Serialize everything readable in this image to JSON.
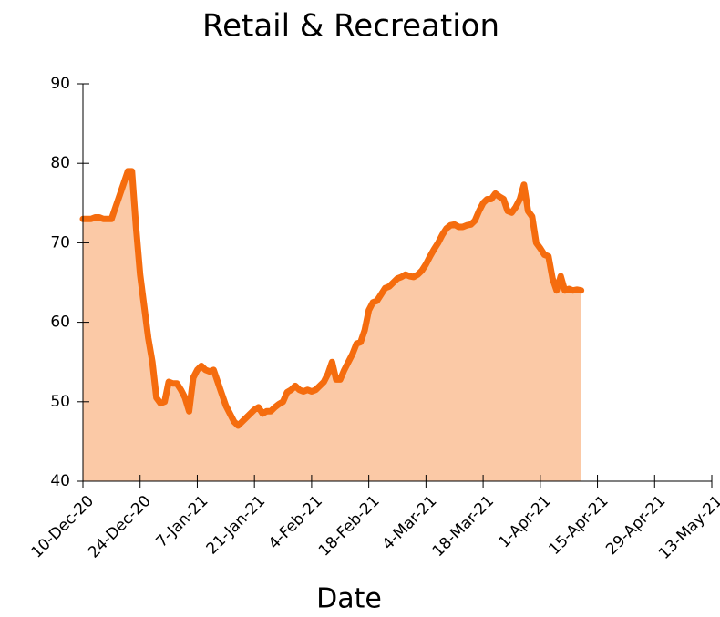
{
  "chart_data": {
    "type": "area",
    "title": "Retail & Recreation",
    "x_label": "Date",
    "x": [
      "2020-12-10",
      "2020-12-11",
      "2020-12-12",
      "2020-12-13",
      "2020-12-14",
      "2020-12-15",
      "2020-12-16",
      "2020-12-17",
      "2020-12-18",
      "2020-12-19",
      "2020-12-20",
      "2020-12-21",
      "2020-12-22",
      "2020-12-23",
      "2020-12-24",
      "2020-12-25",
      "2020-12-26",
      "2020-12-27",
      "2020-12-28",
      "2020-12-29",
      "2020-12-30",
      "2020-12-31",
      "2021-01-01",
      "2021-01-02",
      "2021-01-03",
      "2021-01-04",
      "2021-01-05",
      "2021-01-06",
      "2021-01-07",
      "2021-01-08",
      "2021-01-09",
      "2021-01-10",
      "2021-01-11",
      "2021-01-12",
      "2021-01-13",
      "2021-01-14",
      "2021-01-15",
      "2021-01-16",
      "2021-01-17",
      "2021-01-18",
      "2021-01-19",
      "2021-01-20",
      "2021-01-21",
      "2021-01-22",
      "2021-01-23",
      "2021-01-24",
      "2021-01-25",
      "2021-01-26",
      "2021-01-27",
      "2021-01-28",
      "2021-01-29",
      "2021-01-30",
      "2021-01-31",
      "2021-02-01",
      "2021-02-02",
      "2021-02-03",
      "2021-02-04",
      "2021-02-05",
      "2021-02-06",
      "2021-02-07",
      "2021-02-08",
      "2021-02-09",
      "2021-02-10",
      "2021-02-11",
      "2021-02-12",
      "2021-02-13",
      "2021-02-14",
      "2021-02-15",
      "2021-02-16",
      "2021-02-17",
      "2021-02-18",
      "2021-02-19",
      "2021-02-20",
      "2021-02-21",
      "2021-02-22",
      "2021-02-23",
      "2021-02-24",
      "2021-02-25",
      "2021-02-26",
      "2021-02-27",
      "2021-02-28",
      "2021-03-01",
      "2021-03-02",
      "2021-03-03",
      "2021-03-04",
      "2021-03-05",
      "2021-03-06",
      "2021-03-07",
      "2021-03-08",
      "2021-03-09",
      "2021-03-10",
      "2021-03-11",
      "2021-03-12",
      "2021-03-13",
      "2021-03-14",
      "2021-03-15",
      "2021-03-16",
      "2021-03-17",
      "2021-03-18",
      "2021-03-19",
      "2021-03-20",
      "2021-03-21",
      "2021-03-22",
      "2021-03-23",
      "2021-03-24",
      "2021-03-25",
      "2021-03-26",
      "2021-03-27",
      "2021-03-28",
      "2021-03-29",
      "2021-03-30",
      "2021-03-31",
      "2021-04-01",
      "2021-04-02",
      "2021-04-03",
      "2021-04-04",
      "2021-04-05",
      "2021-04-06",
      "2021-04-07",
      "2021-04-08",
      "2021-04-09",
      "2021-04-10",
      "2021-04-11"
    ],
    "series": [
      {
        "color": "#f56c0e",
        "fill": "#fbc9a6",
        "values": [
          73,
          73,
          73,
          73.2,
          73.2,
          73,
          73,
          73,
          74.5,
          76,
          77.5,
          79,
          79,
          72,
          66,
          62,
          58,
          55,
          50.5,
          49.8,
          50,
          52.5,
          52.3,
          52.3,
          51.5,
          50.5,
          48.8,
          53,
          54,
          54.5,
          54,
          53.8,
          54,
          52.5,
          51,
          49.5,
          48.5,
          47.5,
          47,
          47.5,
          48,
          48.5,
          49,
          49.3,
          48.5,
          48.8,
          48.8,
          49.3,
          49.7,
          50,
          51.2,
          51.5,
          52,
          51.5,
          51.3,
          51.5,
          51.3,
          51.5,
          52,
          52.5,
          53.5,
          55,
          52.8,
          52.8,
          54,
          55,
          56,
          57.3,
          57.5,
          59,
          61.5,
          62.5,
          62.7,
          63.5,
          64.3,
          64.5,
          65,
          65.5,
          65.7,
          66,
          65.8,
          65.7,
          66,
          66.5,
          67.3,
          68.3,
          69.2,
          70,
          71,
          71.8,
          72.2,
          72.3,
          72,
          72,
          72.2,
          72.3,
          72.8,
          74,
          75,
          75.5,
          75.5,
          76.2,
          75.8,
          75.5,
          74,
          73.8,
          74.5,
          75.5,
          77.3,
          74,
          73.3,
          70,
          69.3,
          68.5,
          68.3,
          65.5,
          64,
          65.8,
          64,
          64.2,
          64,
          64.1,
          64
        ]
      }
    ],
    "xlim": [
      "2020-12-10",
      "2021-05-13"
    ],
    "xticks": [
      {
        "value": "2020-12-10",
        "label": "10-Dec-20"
      },
      {
        "value": "2020-12-24",
        "label": "24-Dec-20"
      },
      {
        "value": "2021-01-07",
        "label": "7-Jan-21"
      },
      {
        "value": "2021-01-21",
        "label": "21-Jan-21"
      },
      {
        "value": "2021-02-04",
        "label": "4-Feb-21"
      },
      {
        "value": "2021-02-18",
        "label": "18-Feb-21"
      },
      {
        "value": "2021-03-04",
        "label": "4-Mar-21"
      },
      {
        "value": "2021-03-18",
        "label": "18-Mar-21"
      },
      {
        "value": "2021-04-01",
        "label": "1-Apr-21"
      },
      {
        "value": "2021-04-15",
        "label": "15-Apr-21"
      },
      {
        "value": "2021-04-29",
        "label": "29-Apr-21"
      },
      {
        "value": "2021-05-13",
        "label": "13-May-21"
      }
    ],
    "ylim": [
      40,
      90
    ],
    "yticks": [
      40,
      50,
      60,
      70,
      80,
      90
    ]
  }
}
